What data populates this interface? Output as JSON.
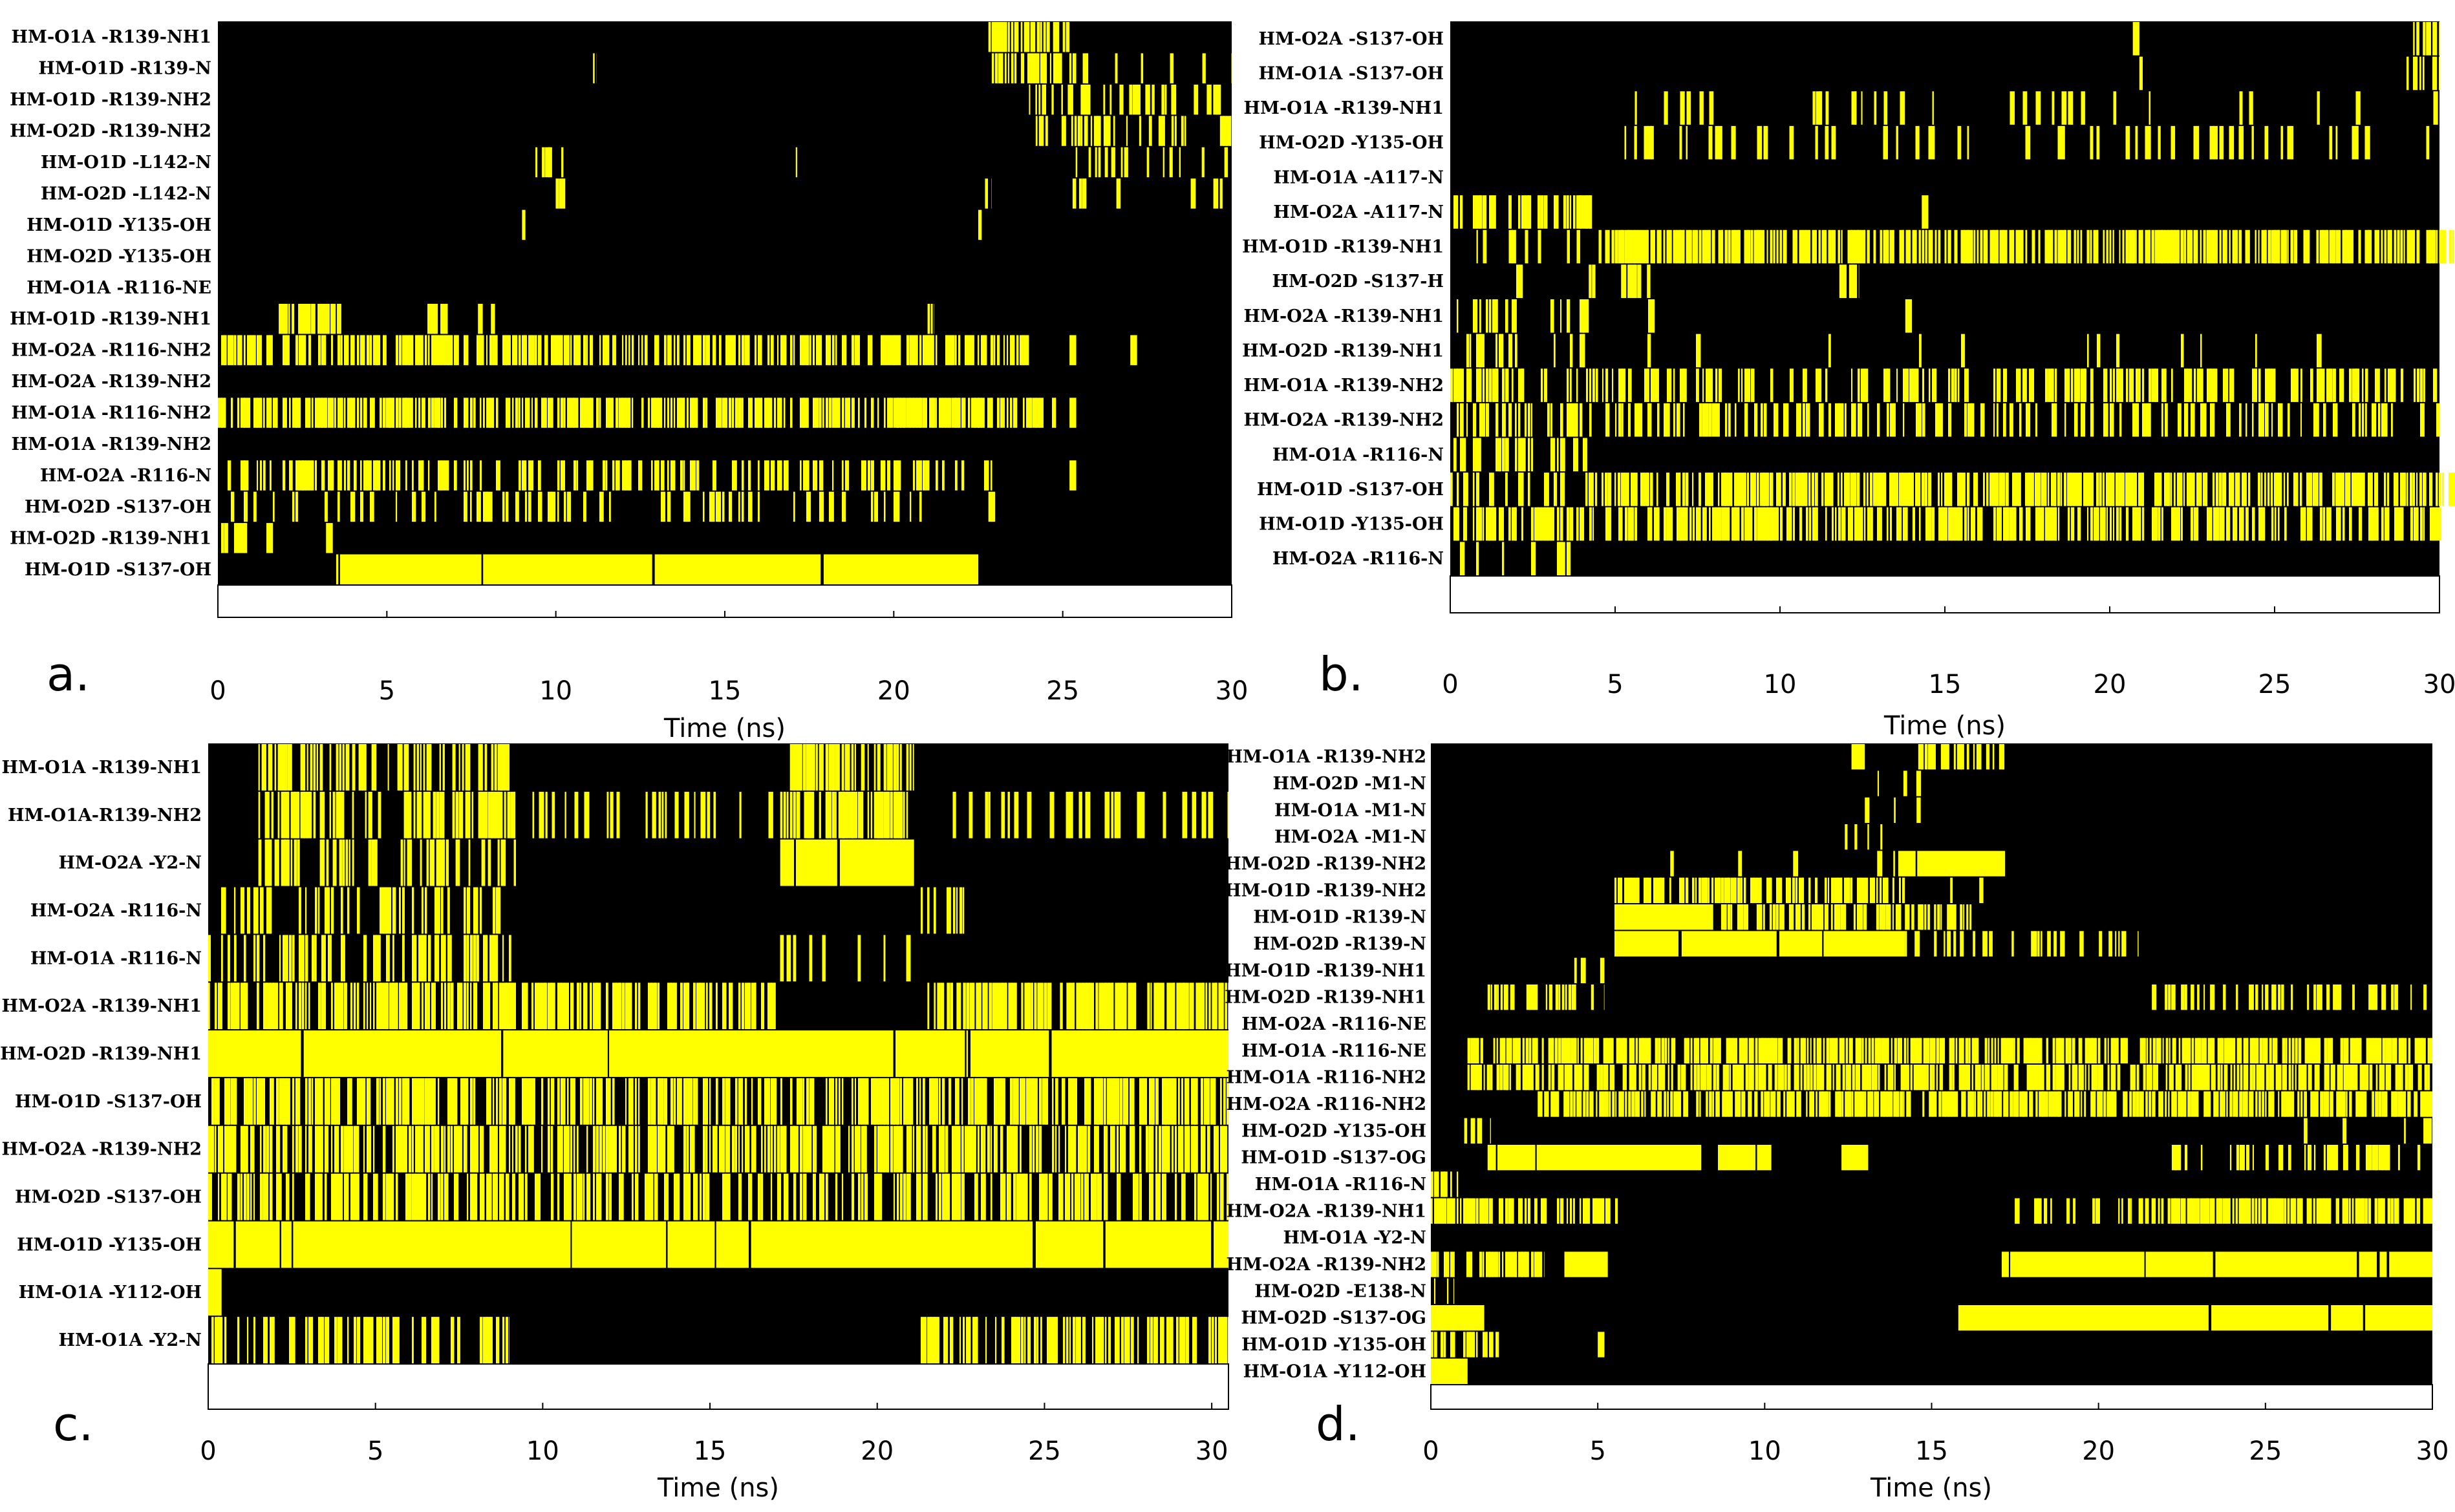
{
  "colors": {
    "background": "#000000",
    "contact": "#ffff00",
    "axis_strip": "#ffffff"
  },
  "chart_data": [
    {
      "panel_label": "a.",
      "type": "heatmap",
      "xlabel": "Time (ns)",
      "xlim": [
        0,
        30
      ],
      "x_ticks": [
        "0",
        "5",
        "10",
        "15",
        "20",
        "25",
        "30"
      ],
      "rows": [
        {
          "label": "HM-O1A -R139-NH1",
          "segments": [
            [
              22.8,
              25.2,
              0.85
            ]
          ]
        },
        {
          "label": "HM-O1D -R139-N",
          "segments": [
            [
              11.1,
              11.2,
              0.8
            ],
            [
              22.9,
              25.4,
              0.7
            ],
            [
              25.4,
              30,
              0.2
            ]
          ]
        },
        {
          "label": "HM-O1D -R139-NH2",
          "segments": [
            [
              24.0,
              30,
              0.45
            ]
          ]
        },
        {
          "label": "HM-O2D -R139-NH2",
          "segments": [
            [
              24.2,
              30,
              0.55
            ]
          ]
        },
        {
          "label": "HM-O1D -L142-N",
          "segments": [
            [
              9.3,
              10.3,
              0.6
            ],
            [
              17.1,
              17.2,
              0.8
            ],
            [
              25.0,
              30,
              0.2
            ]
          ]
        },
        {
          "label": "HM-O2D -L142-N",
          "segments": [
            [
              9.9,
              10.8,
              0.4
            ],
            [
              22.7,
              22.9,
              0.8
            ],
            [
              25.1,
              25.7,
              0.7
            ],
            [
              26.3,
              30,
              0.08
            ]
          ]
        },
        {
          "label": "HM-O1D -Y135-OH",
          "segments": [
            [
              9.0,
              9.1,
              0.9
            ],
            [
              22.5,
              22.6,
              0.8
            ]
          ]
        },
        {
          "label": "HM-O2D -Y135-OH",
          "segments": []
        },
        {
          "label": "HM-O1A -R116-NE",
          "segments": []
        },
        {
          "label": "HM-O1D -R139-NH1",
          "segments": [
            [
              1.8,
              3.7,
              0.7
            ],
            [
              6.2,
              6.8,
              0.7
            ],
            [
              7.6,
              8.2,
              0.6
            ],
            [
              21.0,
              21.2,
              0.8
            ]
          ]
        },
        {
          "label": "HM-O2A -R116-NH2",
          "segments": [
            [
              0,
              24,
              0.7
            ],
            [
              25.2,
              25.4,
              0.9
            ],
            [
              27.0,
              27.2,
              0.9
            ]
          ]
        },
        {
          "label": "HM-O2A -R139-NH2",
          "segments": []
        },
        {
          "label": "HM-O1A -R116-NH2",
          "segments": [
            [
              0,
              24.8,
              0.8
            ],
            [
              25.2,
              25.4,
              0.9
            ]
          ]
        },
        {
          "label": "HM-O1A -R139-NH2",
          "segments": []
        },
        {
          "label": "HM-O2A -R116-N",
          "segments": [
            [
              0,
              23,
              0.4
            ],
            [
              25.2,
              25.4,
              0.9
            ]
          ]
        },
        {
          "label": "HM-O2D -S137-OH",
          "segments": [
            [
              0,
              21,
              0.3
            ],
            [
              22.8,
              23,
              0.9
            ]
          ]
        },
        {
          "label": "HM-O2D -R139-NH1",
          "segments": [
            [
              0,
              1.7,
              0.6
            ],
            [
              3.2,
              3.4,
              0.9
            ]
          ]
        },
        {
          "label": "HM-O1D -S137-OH",
          "segments": [
            [
              3.5,
              22.5,
              0.9
            ]
          ]
        }
      ]
    },
    {
      "panel_label": "b.",
      "type": "heatmap",
      "xlabel": "Time (ns)",
      "xlim": [
        0,
        30
      ],
      "x_ticks": [
        "0",
        "5",
        "10",
        "15",
        "20",
        "25",
        "30"
      ],
      "rows": [
        {
          "label": "HM-O2A -S137-OH",
          "segments": [
            [
              20.7,
              20.9,
              1
            ],
            [
              29.2,
              30,
              0.7
            ]
          ]
        },
        {
          "label": "HM-O1A -S137-OH",
          "segments": [
            [
              20.8,
              21,
              0.7
            ],
            [
              29.0,
              30,
              0.6
            ]
          ]
        },
        {
          "label": "HM-O1A -R139-NH1",
          "segments": [
            [
              5.5,
              30,
              0.12
            ]
          ]
        },
        {
          "label": "HM-O2D -Y135-OH",
          "segments": [
            [
              4.5,
              30,
              0.22
            ]
          ]
        },
        {
          "label": "HM-O1A -A117-N",
          "segments": []
        },
        {
          "label": "HM-O2A -A117-N",
          "segments": [
            [
              0,
              4.3,
              0.6
            ],
            [
              14.3,
              14.5,
              0.9
            ]
          ]
        },
        {
          "label": "HM-O1D -R139-NH1",
          "segments": [
            [
              0.5,
              4.5,
              0.1
            ],
            [
              4.5,
              30.5,
              0.8
            ]
          ]
        },
        {
          "label": "HM-O2D -S137-H",
          "segments": [
            [
              2.0,
              2.2,
              0.9
            ],
            [
              4.2,
              6.2,
              0.5
            ],
            [
              11.8,
              12.4,
              0.7
            ]
          ]
        },
        {
          "label": "HM-O2A -R139-NH1",
          "segments": [
            [
              0,
              4.2,
              0.35
            ],
            [
              6.0,
              6.2,
              0.9
            ],
            [
              13.8,
              14,
              0.9
            ]
          ]
        },
        {
          "label": "HM-O2D -R139-NH1",
          "segments": [
            [
              0,
              4.5,
              0.3
            ],
            [
              5.0,
              30,
              0.05
            ]
          ]
        },
        {
          "label": "HM-O1A -R139-NH2",
          "segments": [
            [
              0,
              30,
              0.5
            ]
          ]
        },
        {
          "label": "HM-O2A -R139-NH2",
          "segments": [
            [
              0,
              30,
              0.45
            ]
          ]
        },
        {
          "label": "HM-O1A -R116-N",
          "segments": [
            [
              0,
              4.2,
              0.5
            ]
          ]
        },
        {
          "label": "HM-O1D -S137-OH",
          "segments": [
            [
              0,
              4.0,
              0.3
            ],
            [
              4.0,
              30.5,
              0.85
            ]
          ]
        },
        {
          "label": "HM-O1D -Y135-OH",
          "segments": [
            [
              0,
              30.5,
              0.65
            ]
          ]
        },
        {
          "label": "HM-O2A -R116-N",
          "segments": [
            [
              0,
              3.7,
              0.2
            ]
          ]
        }
      ]
    },
    {
      "panel_label": "c.",
      "type": "heatmap",
      "xlabel": "Time (ns)",
      "xlim": [
        0,
        30.5
      ],
      "x_ticks": [
        "0",
        "5",
        "10",
        "15",
        "20",
        "25",
        "30"
      ],
      "rows": [
        {
          "label": "HM-O1A -R139-NH1",
          "segments": [
            [
              1.5,
              9.2,
              0.7
            ],
            [
              17.1,
              21.1,
              0.75
            ]
          ]
        },
        {
          "label": "HM-O1A-R139-NH2",
          "segments": [
            [
              1.5,
              9.2,
              0.6
            ],
            [
              9.5,
              30.5,
              0.3
            ],
            [
              17.1,
              21.1,
              0.6
            ]
          ]
        },
        {
          "label": "HM-O2A -Y2-N",
          "segments": [
            [
              1.5,
              9.2,
              0.5
            ],
            [
              17.1,
              21.1,
              0.9
            ]
          ]
        },
        {
          "label": "HM-O2A -R116-N",
          "segments": [
            [
              0,
              9.2,
              0.4
            ],
            [
              21.3,
              22.6,
              0.6
            ]
          ]
        },
        {
          "label": "HM-O1A -R116-N",
          "segments": [
            [
              0,
              9.2,
              0.45
            ],
            [
              17.0,
              21,
              0.1
            ]
          ]
        },
        {
          "label": "HM-O2A -R139-NH1",
          "segments": [
            [
              0,
              17,
              0.75
            ],
            [
              21.5,
              30.5,
              0.85
            ]
          ]
        },
        {
          "label": "HM-O2D -R139-NH1",
          "segments": [
            [
              0,
              30.5,
              0.92
            ]
          ]
        },
        {
          "label": "HM-O1D -S137-OH",
          "segments": [
            [
              0,
              30.5,
              0.75
            ]
          ]
        },
        {
          "label": "HM-O2A -R139-NH2",
          "segments": [
            [
              0,
              30.5,
              0.75
            ]
          ]
        },
        {
          "label": "HM-O2D -S137-OH",
          "segments": [
            [
              0,
              30.5,
              0.6
            ]
          ]
        },
        {
          "label": "HM-O1D -Y135-OH",
          "segments": [
            [
              0,
              30.5,
              0.92
            ]
          ]
        },
        {
          "label": "HM-O1A -Y112-OH",
          "segments": [
            [
              0,
              0.4,
              0.9
            ]
          ]
        },
        {
          "label": "HM-O1A -Y2-N",
          "segments": [
            [
              0,
              9,
              0.6
            ],
            [
              21.3,
              30.5,
              0.8
            ]
          ]
        }
      ]
    },
    {
      "panel_label": "d.",
      "type": "heatmap",
      "xlabel": "Time (ns)",
      "xlim": [
        0,
        30
      ],
      "x_ticks": [
        "0",
        "5",
        "10",
        "15",
        "20",
        "25",
        "30"
      ],
      "rows": [
        {
          "label": "HM-O1A -R139-NH2",
          "segments": [
            [
              12.6,
              13,
              0.9
            ],
            [
              14.6,
              17.2,
              0.65
            ]
          ]
        },
        {
          "label": "HM-O2D -M1-N",
          "segments": [
            [
              12.8,
              15.2,
              0.1
            ]
          ]
        },
        {
          "label": "HM-O1A -M1-N",
          "segments": [
            [
              13.0,
              15.0,
              0.08
            ]
          ]
        },
        {
          "label": "HM-O2A -M1-N",
          "segments": [
            [
              12.4,
              13.6,
              0.15
            ]
          ]
        },
        {
          "label": "HM-O2D -R139-NH2",
          "segments": [
            [
              6.3,
              14,
              0.12
            ],
            [
              14,
              17.2,
              0.95
            ]
          ]
        },
        {
          "label": "HM-O1D -R139-NH2",
          "segments": [
            [
              5.5,
              14.2,
              0.85
            ],
            [
              14.2,
              17.2,
              0.15
            ]
          ]
        },
        {
          "label": "HM-O1D -R139-N",
          "segments": [
            [
              5.5,
              8.5,
              0.9
            ],
            [
              8.5,
              14.2,
              0.55
            ],
            [
              14.2,
              16.2,
              0.75
            ]
          ]
        },
        {
          "label": "HM-O2D -R139-N",
          "segments": [
            [
              5.5,
              14.2,
              0.9
            ],
            [
              14.2,
              21.2,
              0.35
            ]
          ]
        },
        {
          "label": "HM-O1D -R139-NH1",
          "segments": [
            [
              4.2,
              5.2,
              0.2
            ]
          ]
        },
        {
          "label": "HM-O2D -R139-NH1",
          "segments": [
            [
              1.7,
              5.2,
              0.55
            ],
            [
              21.5,
              30,
              0.5
            ]
          ]
        },
        {
          "label": "HM-O2A -R116-NE",
          "segments": []
        },
        {
          "label": "HM-O1A -R116-NE",
          "segments": [
            [
              1.0,
              30,
              0.85
            ]
          ]
        },
        {
          "label": "HM-O1A -R116-NH2",
          "segments": [
            [
              1.0,
              30,
              0.8
            ]
          ]
        },
        {
          "label": "HM-O2A -R116-NH2",
          "segments": [
            [
              3.2,
              30,
              0.85
            ]
          ]
        },
        {
          "label": "HM-O2D -Y135-OH",
          "segments": [
            [
              1.0,
              1.8,
              0.4
            ],
            [
              21.5,
              30,
              0.08
            ]
          ]
        },
        {
          "label": "HM-O1D -S137-OG",
          "segments": [
            [
              1.7,
              8.1,
              0.9
            ],
            [
              8.6,
              10.2,
              0.9
            ],
            [
              12.3,
              13.1,
              0.9
            ],
            [
              22.0,
              30,
              0.35
            ]
          ]
        },
        {
          "label": "HM-O1A -R116-N",
          "segments": [
            [
              0,
              1.1,
              0.8
            ]
          ]
        },
        {
          "label": "HM-O2A -R139-NH1",
          "segments": [
            [
              0,
              5.6,
              0.85
            ],
            [
              17.2,
              21,
              0.4
            ],
            [
              21.2,
              30,
              0.85
            ]
          ]
        },
        {
          "label": "HM-O1A -Y2-N",
          "segments": []
        },
        {
          "label": "HM-O2A -R139-NH2",
          "segments": [
            [
              0,
              3.4,
              0.8
            ],
            [
              4.0,
              5.3,
              0.95
            ],
            [
              17.1,
              30,
              0.9
            ]
          ]
        },
        {
          "label": "HM-O2D -E138-N",
          "segments": [
            [
              0,
              0.7,
              0.5
            ]
          ]
        },
        {
          "label": "HM-O2D -S137-OG",
          "segments": [
            [
              0,
              1.6,
              0.9
            ],
            [
              15.8,
              30,
              0.95
            ]
          ]
        },
        {
          "label": "HM-O1D -Y135-OH",
          "segments": [
            [
              0,
              2.3,
              0.6
            ],
            [
              5.0,
              5.2,
              0.9
            ]
          ]
        },
        {
          "label": "HM-O1A -Y112-OH",
          "segments": [
            [
              0,
              1.1,
              0.9
            ]
          ]
        }
      ]
    }
  ]
}
